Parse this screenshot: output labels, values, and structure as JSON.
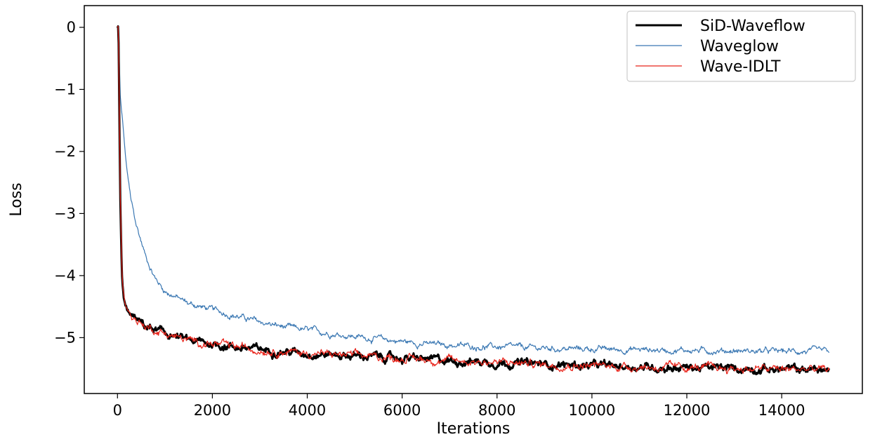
{
  "chart_data": {
    "type": "line",
    "title": "",
    "xlabel": "Iterations",
    "ylabel": "Loss",
    "xlim": [
      -700,
      15700
    ],
    "ylim": [
      -5.9,
      0.35
    ],
    "xticks": [
      0,
      2000,
      4000,
      6000,
      8000,
      10000,
      12000,
      14000
    ],
    "xtick_labels": [
      "0",
      "2000",
      "4000",
      "6000",
      "8000",
      "10000",
      "12000",
      "14000"
    ],
    "yticks": [
      0,
      -1,
      -2,
      -3,
      -4,
      -5
    ],
    "ytick_labels": [
      "0",
      "−1",
      "−2",
      "−3",
      "−4",
      "−5"
    ],
    "grid": false,
    "legend_position": "top-right",
    "series": [
      {
        "name": "SiD-Waveflow",
        "color": "#000000",
        "stroke_width": 3,
        "x": [
          0,
          20,
          40,
          60,
          80,
          100,
          130,
          160,
          200,
          300,
          400,
          600,
          800,
          1000,
          1500,
          2000,
          2500,
          3000,
          3500,
          4000,
          4500,
          5000,
          5500,
          6000,
          6500,
          7000,
          7500,
          8000,
          8500,
          9000,
          9500,
          10000,
          10500,
          11000,
          11500,
          12000,
          12500,
          13000,
          13500,
          14000,
          14500,
          15000
        ],
        "y": [
          0.0,
          0.05,
          -1.5,
          -2.8,
          -3.6,
          -4.1,
          -4.35,
          -4.45,
          -4.55,
          -4.65,
          -4.72,
          -4.82,
          -4.88,
          -4.93,
          -5.05,
          -5.1,
          -5.15,
          -5.19,
          -5.22,
          -5.25,
          -5.27,
          -5.29,
          -5.31,
          -5.33,
          -5.35,
          -5.37,
          -5.38,
          -5.4,
          -5.41,
          -5.43,
          -5.44,
          -5.45,
          -5.46,
          -5.47,
          -5.48,
          -5.48,
          -5.49,
          -5.5,
          -5.5,
          -5.51,
          -5.51,
          -5.52
        ]
      },
      {
        "name": "Waveglow",
        "color": "#3b78b3",
        "stroke_width": 1.2,
        "x": [
          0,
          20,
          40,
          60,
          80,
          100,
          130,
          160,
          200,
          300,
          400,
          600,
          800,
          1000,
          1500,
          2000,
          2500,
          3000,
          3500,
          4000,
          4500,
          5000,
          5500,
          6000,
          6500,
          7000,
          7500,
          8000,
          8500,
          9000,
          9500,
          10000,
          10500,
          11000,
          11500,
          12000,
          12500,
          13000,
          13500,
          14000,
          14500,
          15000
        ],
        "y": [
          0.0,
          0.02,
          -0.6,
          -1.1,
          -1.3,
          -1.45,
          -1.7,
          -2.0,
          -2.3,
          -2.85,
          -3.2,
          -3.7,
          -4.05,
          -4.25,
          -4.45,
          -4.55,
          -4.65,
          -4.75,
          -4.83,
          -4.88,
          -4.93,
          -4.98,
          -5.02,
          -5.06,
          -5.1,
          -5.12,
          -5.14,
          -5.15,
          -5.16,
          -5.17,
          -5.18,
          -5.18,
          -5.19,
          -5.19,
          -5.2,
          -5.2,
          -5.21,
          -5.21,
          -5.22,
          -5.22,
          -5.22,
          -5.23
        ]
      },
      {
        "name": "Wave-IDLT",
        "color": "#e8241b",
        "stroke_width": 1.2,
        "x": [
          0,
          20,
          40,
          60,
          80,
          100,
          130,
          160,
          200,
          300,
          400,
          600,
          800,
          1000,
          1500,
          2000,
          2500,
          3000,
          3500,
          4000,
          4500,
          5000,
          5500,
          6000,
          6500,
          7000,
          7500,
          8000,
          8500,
          9000,
          9500,
          10000,
          10500,
          11000,
          11500,
          12000,
          12500,
          13000,
          13500,
          14000,
          14500,
          15000
        ],
        "y": [
          0.0,
          0.03,
          -1.4,
          -2.7,
          -3.5,
          -4.05,
          -4.3,
          -4.45,
          -4.55,
          -4.65,
          -4.72,
          -4.82,
          -4.88,
          -4.93,
          -5.05,
          -5.1,
          -5.15,
          -5.19,
          -5.22,
          -5.25,
          -5.27,
          -5.29,
          -5.31,
          -5.33,
          -5.35,
          -5.37,
          -5.38,
          -5.4,
          -5.41,
          -5.43,
          -5.44,
          -5.45,
          -5.46,
          -5.47,
          -5.48,
          -5.48,
          -5.49,
          -5.5,
          -5.5,
          -5.51,
          -5.51,
          -5.52
        ]
      }
    ]
  }
}
